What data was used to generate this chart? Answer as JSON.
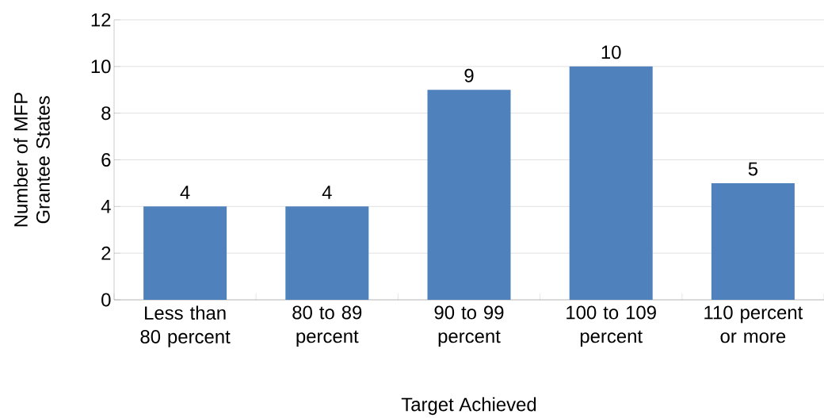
{
  "chart_data": {
    "type": "bar",
    "xlabel": "Target Achieved",
    "ylabel": "Number of MFP Grantee States",
    "categories": [
      "Less than 80 percent",
      "80 to 89 percent",
      "90 to 99 percent",
      "100 to 109 percent",
      "110 percent or more"
    ],
    "values": [
      4,
      4,
      9,
      10,
      5
    ],
    "color": "#4f81bd",
    "ylim": [
      0,
      12
    ],
    "yticks": [
      0,
      2,
      4,
      6,
      8,
      10,
      12
    ],
    "grid": "y",
    "data_labels": true
  }
}
